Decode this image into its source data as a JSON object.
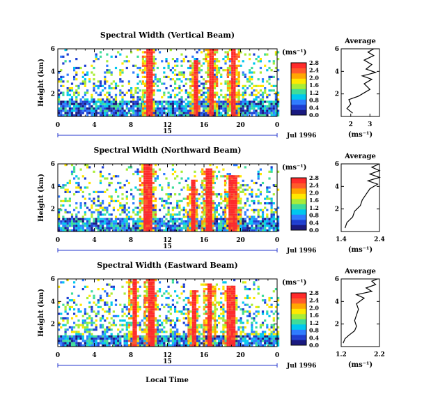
{
  "footer": {
    "xlabel": "Local Time"
  },
  "panel_labels": {
    "date": "Jul 1996",
    "day": "15",
    "avg_unit": "(ms⁻¹)",
    "cb_unit": "(ms⁻¹)"
  },
  "colors": {
    "red": "#ff3333",
    "orange": "#ff9900",
    "yellow": "#ffee00",
    "green": "#55dd55",
    "cyan": "#00ddee",
    "blue": "#3366ff",
    "navy": "#1a1a99"
  },
  "chart_data": [
    {
      "type": "heatmap",
      "title": "Spectral Width (Vertical Beam)",
      "ylabel": "Height (km)",
      "xlabel": "Local Time",
      "x_ticks": [
        "0",
        "4",
        "8",
        "12",
        "16",
        "20",
        "0"
      ],
      "x_range": [
        0,
        24
      ],
      "y_ticks": [
        "2",
        "4",
        "6"
      ],
      "y_range": [
        0,
        6
      ],
      "colorbar": {
        "unit": "(ms⁻¹)",
        "ticks": [
          "0.0",
          "0.4",
          "0.8",
          "1.2",
          "1.6",
          "2.0",
          "2.4",
          "2.8"
        ]
      },
      "bands": [
        {
          "x": [
            0,
            24
          ],
          "y": [
            0,
            1.4
          ],
          "level": "low"
        },
        {
          "x": [
            9.5,
            10.2
          ],
          "y": [
            0,
            6
          ],
          "level": "max"
        },
        {
          "x": [
            14.7,
            15.2
          ],
          "y": [
            0,
            5
          ],
          "level": "max"
        },
        {
          "x": [
            16.4,
            17.0
          ],
          "y": [
            0,
            6
          ],
          "level": "max"
        },
        {
          "x": [
            18.8,
            19.4
          ],
          "y": [
            0,
            6
          ],
          "level": "max"
        }
      ],
      "average": {
        "title": "Average",
        "xlim": [
          1.5,
          3.5
        ],
        "x_ticks": [
          "2",
          "3"
        ],
        "y_ticks": [
          "2",
          "4",
          "6"
        ],
        "profile": [
          [
            2.1,
            0.3
          ],
          [
            1.8,
            0.7
          ],
          [
            2.0,
            1.1
          ],
          [
            1.9,
            1.5
          ],
          [
            2.4,
            1.8
          ],
          [
            2.6,
            2.0
          ],
          [
            3.0,
            2.4
          ],
          [
            2.7,
            2.9
          ],
          [
            3.1,
            3.3
          ],
          [
            2.6,
            3.6
          ],
          [
            3.3,
            3.9
          ],
          [
            2.8,
            4.2
          ],
          [
            3.1,
            4.6
          ],
          [
            2.7,
            5.0
          ],
          [
            3.2,
            5.4
          ],
          [
            2.9,
            5.7
          ],
          [
            3.2,
            6.0
          ]
        ]
      }
    },
    {
      "type": "heatmap",
      "title": "Spectral Width (Northward Beam)",
      "ylabel": "Height (km)",
      "xlabel": "Local Time",
      "x_ticks": [
        "0",
        "4",
        "8",
        "12",
        "16",
        "20",
        "0"
      ],
      "x_range": [
        0,
        24
      ],
      "y_ticks": [
        "2",
        "4",
        "6"
      ],
      "y_range": [
        0,
        6
      ],
      "colorbar": {
        "unit": "(ms⁻¹)",
        "ticks": [
          "0.0",
          "0.4",
          "0.8",
          "1.2",
          "1.6",
          "2.0",
          "2.4",
          "2.8"
        ]
      },
      "bands": [
        {
          "x": [
            0,
            24
          ],
          "y": [
            0,
            1.2
          ],
          "level": "low"
        },
        {
          "x": [
            9.2,
            10.3
          ],
          "y": [
            0,
            6
          ],
          "level": "max"
        },
        {
          "x": [
            14.4,
            15.0
          ],
          "y": [
            0,
            4.5
          ],
          "level": "max"
        },
        {
          "x": [
            16.0,
            16.8
          ],
          "y": [
            0,
            5.5
          ],
          "level": "max"
        },
        {
          "x": [
            18.5,
            19.6
          ],
          "y": [
            0,
            5.0
          ],
          "level": "max"
        }
      ],
      "average": {
        "title": "Average",
        "xlim": [
          1.4,
          2.4
        ],
        "x_ticks": [
          "1.4",
          "2.4"
        ],
        "y_ticks": [
          "2",
          "4",
          "6"
        ],
        "profile": [
          [
            1.5,
            0.3
          ],
          [
            1.55,
            0.8
          ],
          [
            1.7,
            1.3
          ],
          [
            1.75,
            1.8
          ],
          [
            1.9,
            2.3
          ],
          [
            1.95,
            2.8
          ],
          [
            2.05,
            3.3
          ],
          [
            2.15,
            3.8
          ],
          [
            2.35,
            4.2
          ],
          [
            2.1,
            4.5
          ],
          [
            2.4,
            4.8
          ],
          [
            2.15,
            5.1
          ],
          [
            2.4,
            5.4
          ],
          [
            2.2,
            5.7
          ],
          [
            2.4,
            6.0
          ]
        ]
      }
    },
    {
      "type": "heatmap",
      "title": "Spectral Width (Eastward Beam)",
      "ylabel": "Height (km)",
      "xlabel": "Local Time",
      "x_ticks": [
        "0",
        "4",
        "8",
        "12",
        "16",
        "20",
        "0"
      ],
      "x_range": [
        0,
        24
      ],
      "y_ticks": [
        "2",
        "4",
        "6"
      ],
      "y_range": [
        0,
        6
      ],
      "colorbar": {
        "unit": "(ms⁻¹)",
        "ticks": [
          "0.0",
          "0.4",
          "0.8",
          "1.2",
          "1.6",
          "2.0",
          "2.4",
          "2.8"
        ]
      },
      "bands": [
        {
          "x": [
            0,
            24
          ],
          "y": [
            0,
            1.0
          ],
          "level": "low"
        },
        {
          "x": [
            8.0,
            8.5
          ],
          "y": [
            0,
            6
          ],
          "level": "max"
        },
        {
          "x": [
            9.7,
            10.4
          ],
          "y": [
            0,
            6
          ],
          "level": "max"
        },
        {
          "x": [
            14.5,
            15.1
          ],
          "y": [
            0,
            5.0
          ],
          "level": "max"
        },
        {
          "x": [
            16.2,
            16.8
          ],
          "y": [
            0,
            5.6
          ],
          "level": "max"
        },
        {
          "x": [
            18.3,
            19.2
          ],
          "y": [
            0,
            5.4
          ],
          "level": "max"
        }
      ],
      "average": {
        "title": "Average",
        "xlim": [
          1.2,
          2.2
        ],
        "x_ticks": [
          "1.2",
          "2.2"
        ],
        "y_ticks": [
          "2",
          "4",
          "6"
        ],
        "profile": [
          [
            1.25,
            0.3
          ],
          [
            1.3,
            0.7
          ],
          [
            1.4,
            1.0
          ],
          [
            1.55,
            1.4
          ],
          [
            1.6,
            1.8
          ],
          [
            1.55,
            2.3
          ],
          [
            1.6,
            2.8
          ],
          [
            1.65,
            3.3
          ],
          [
            1.6,
            3.8
          ],
          [
            1.8,
            4.3
          ],
          [
            1.6,
            4.6
          ],
          [
            2.0,
            4.9
          ],
          [
            1.85,
            5.2
          ],
          [
            2.1,
            5.5
          ],
          [
            2.0,
            5.8
          ],
          [
            2.15,
            6.0
          ]
        ]
      }
    }
  ]
}
